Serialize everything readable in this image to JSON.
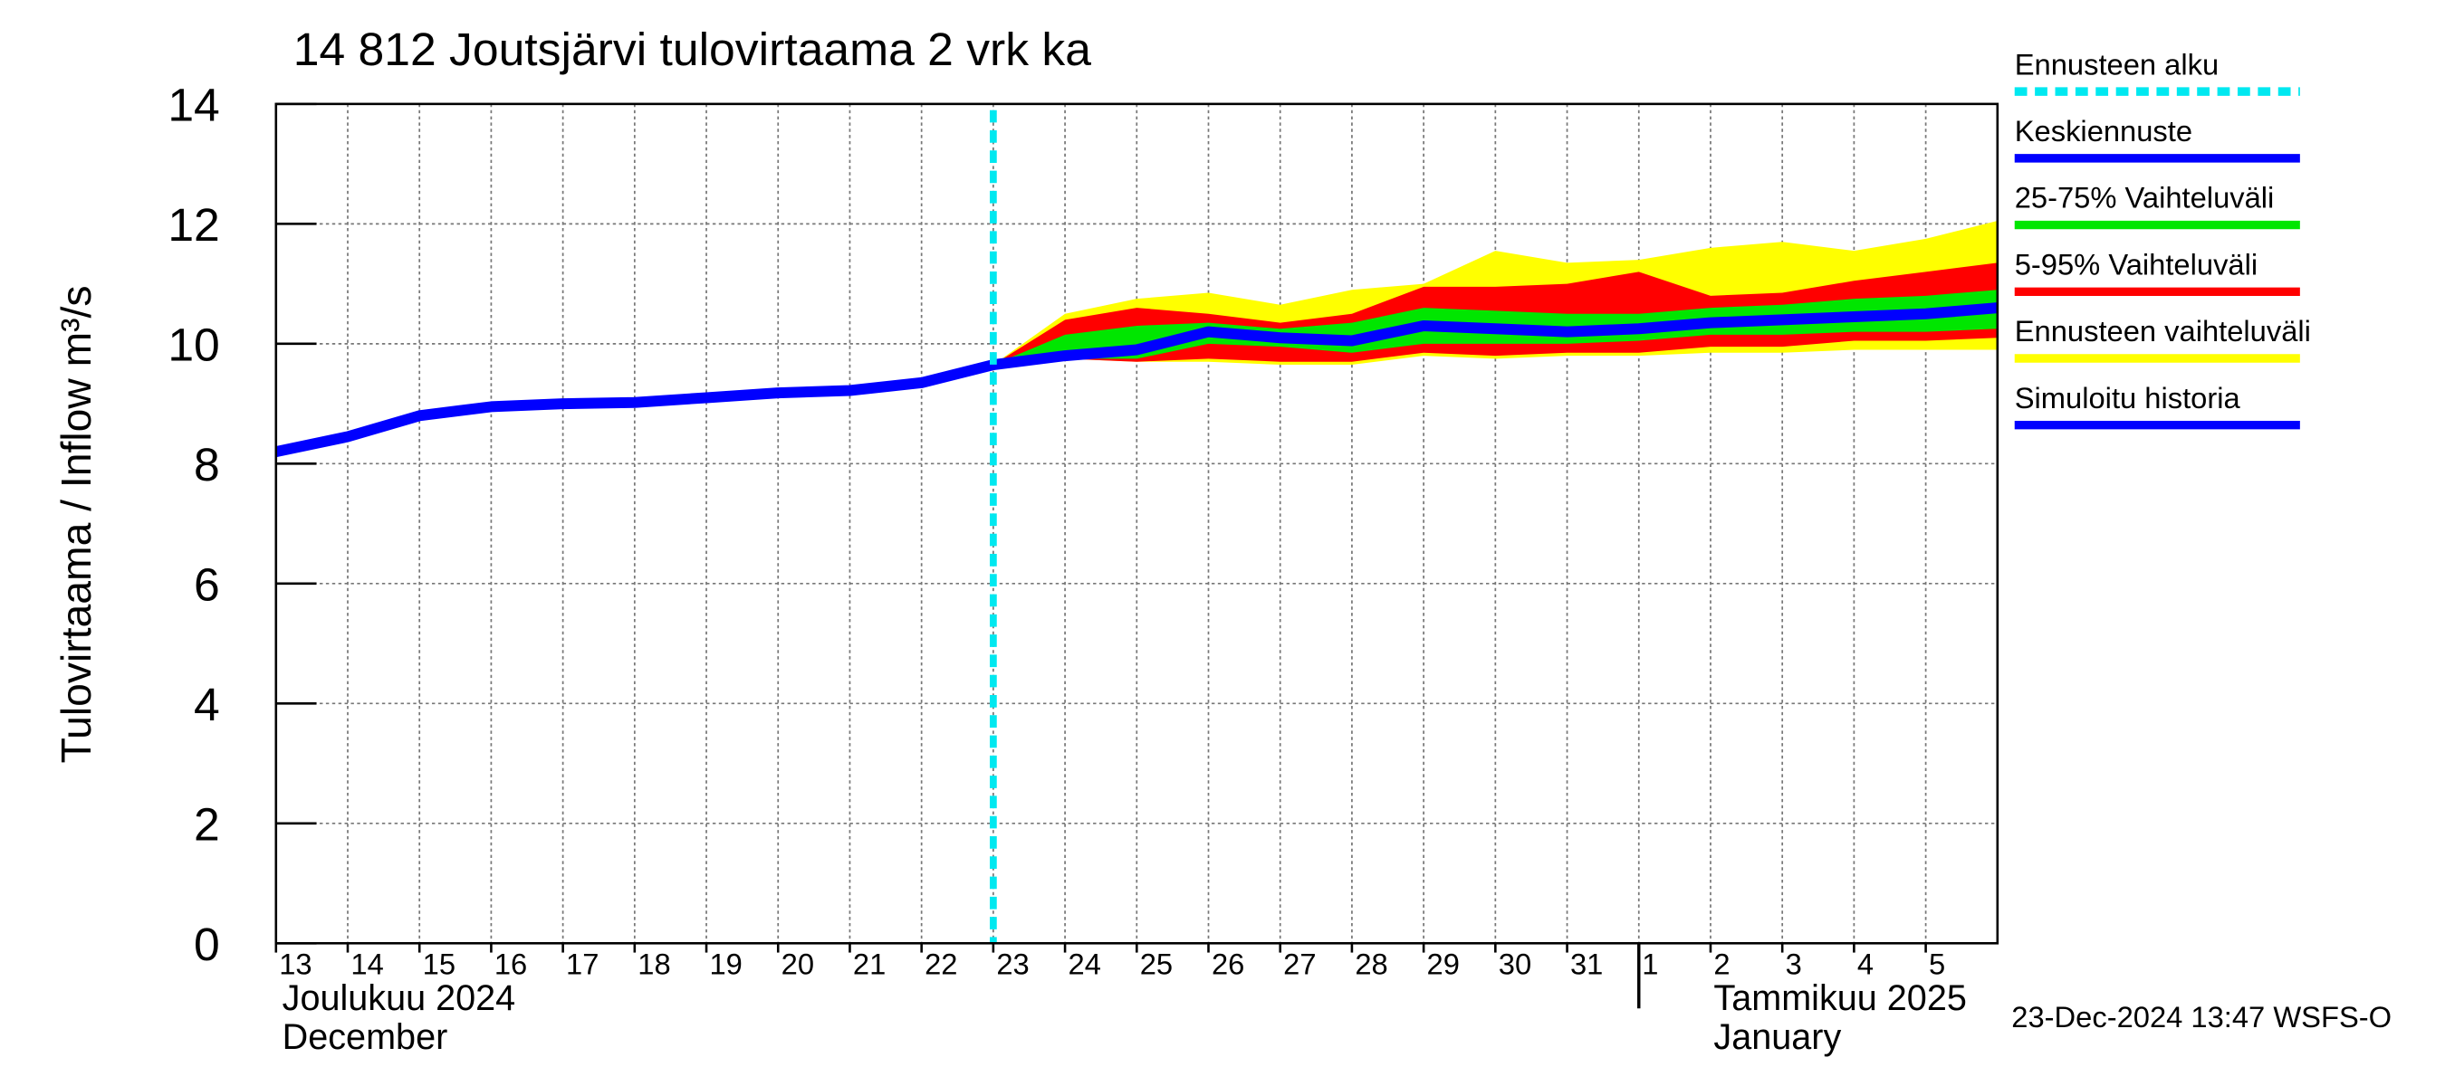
{
  "chart_data": {
    "type": "forecast",
    "title": "14 812 Joutsjärvi tulovirtaama 2 vrk ka",
    "y_label": "Tulovirtaama / Inflow    m³/s",
    "x": [
      "2024-12-13",
      "2024-12-14",
      "2024-12-15",
      "2024-12-16",
      "2024-12-17",
      "2024-12-18",
      "2024-12-19",
      "2024-12-20",
      "2024-12-21",
      "2024-12-22",
      "2024-12-23",
      "2024-12-24",
      "2024-12-25",
      "2024-12-26",
      "2024-12-27",
      "2024-12-28",
      "2024-12-29",
      "2024-12-30",
      "2024-12-31",
      "2025-01-01",
      "2025-01-02",
      "2025-01-03",
      "2025-01-04",
      "2025-01-05",
      "2025-01-06"
    ],
    "xlim": [
      "2024-12-13",
      "2025-01-06"
    ],
    "xticks": [
      {
        "value": "2024-12-13",
        "label": "13"
      },
      {
        "value": "2024-12-14",
        "label": "14"
      },
      {
        "value": "2024-12-15",
        "label": "15"
      },
      {
        "value": "2024-12-16",
        "label": "16"
      },
      {
        "value": "2024-12-17",
        "label": "17"
      },
      {
        "value": "2024-12-18",
        "label": "18"
      },
      {
        "value": "2024-12-19",
        "label": "19"
      },
      {
        "value": "2024-12-20",
        "label": "20"
      },
      {
        "value": "2024-12-21",
        "label": "21"
      },
      {
        "value": "2024-12-22",
        "label": "22"
      },
      {
        "value": "2024-12-23",
        "label": "23"
      },
      {
        "value": "2024-12-24",
        "label": "24"
      },
      {
        "value": "2024-12-25",
        "label": "25"
      },
      {
        "value": "2024-12-26",
        "label": "26"
      },
      {
        "value": "2024-12-27",
        "label": "27"
      },
      {
        "value": "2024-12-28",
        "label": "28"
      },
      {
        "value": "2024-12-29",
        "label": "29"
      },
      {
        "value": "2024-12-30",
        "label": "30"
      },
      {
        "value": "2024-12-31",
        "label": "31"
      },
      {
        "value": "2025-01-01",
        "label": "1"
      },
      {
        "value": "2025-01-02",
        "label": "2"
      },
      {
        "value": "2025-01-03",
        "label": "3"
      },
      {
        "value": "2025-01-04",
        "label": "4"
      },
      {
        "value": "2025-01-05",
        "label": "5"
      }
    ],
    "month_labels": [
      {
        "x": "2024-12-13",
        "fi": "Joulukuu  2024",
        "en": "December"
      },
      {
        "x": "2025-01-01",
        "fi": "Tammikuu  2025",
        "en": "January"
      }
    ],
    "ylim": [
      0,
      14
    ],
    "yticks": [
      0,
      2,
      4,
      6,
      8,
      10,
      12,
      14
    ],
    "grid": true,
    "forecast_start": {
      "name": "Ennusteen alku",
      "x": "2024-12-23",
      "color": "#00e8f0"
    },
    "series": [
      {
        "name": "Ennusteen vaihteluväli",
        "color": "#ffff00",
        "low": [
          null,
          null,
          null,
          null,
          null,
          null,
          null,
          null,
          null,
          null,
          9.65,
          9.75,
          9.7,
          9.7,
          9.65,
          9.65,
          9.8,
          9.75,
          9.8,
          9.8,
          9.85,
          9.85,
          9.9,
          9.9,
          9.9
        ],
        "high": [
          null,
          null,
          null,
          null,
          null,
          null,
          null,
          null,
          null,
          null,
          9.65,
          10.5,
          10.75,
          10.85,
          10.65,
          10.9,
          11.0,
          11.55,
          11.35,
          11.4,
          11.6,
          11.7,
          11.55,
          11.75,
          12.05
        ]
      },
      {
        "name": "5-95% Vaihteluväli",
        "color": "#ff0000",
        "low": [
          null,
          null,
          null,
          null,
          null,
          null,
          null,
          null,
          null,
          null,
          9.65,
          9.75,
          9.7,
          9.75,
          9.7,
          9.7,
          9.85,
          9.8,
          9.85,
          9.85,
          9.95,
          9.95,
          10.05,
          10.05,
          10.1
        ],
        "high": [
          null,
          null,
          null,
          null,
          null,
          null,
          null,
          null,
          null,
          null,
          9.65,
          10.4,
          10.6,
          10.5,
          10.35,
          10.5,
          10.95,
          10.95,
          11.0,
          11.2,
          10.8,
          10.85,
          11.05,
          11.2,
          11.35
        ]
      },
      {
        "name": "25-75% Vaihteluväli",
        "color": "#00e600",
        "low": [
          null,
          null,
          null,
          null,
          null,
          null,
          null,
          null,
          null,
          null,
          9.65,
          9.75,
          9.75,
          10.0,
          9.95,
          9.85,
          10.0,
          10.0,
          10.0,
          10.05,
          10.15,
          10.15,
          10.2,
          10.2,
          10.25
        ],
        "high": [
          null,
          null,
          null,
          null,
          null,
          null,
          null,
          null,
          null,
          null,
          9.65,
          10.15,
          10.3,
          10.35,
          10.25,
          10.35,
          10.6,
          10.55,
          10.5,
          10.5,
          10.6,
          10.65,
          10.75,
          10.8,
          10.9
        ]
      },
      {
        "name": "Keskiennuste",
        "color": "#0000ff",
        "values": [
          null,
          null,
          null,
          null,
          null,
          null,
          null,
          null,
          null,
          null,
          9.65,
          9.8,
          9.9,
          10.2,
          10.1,
          10.05,
          10.3,
          10.25,
          10.2,
          10.25,
          10.35,
          10.4,
          10.45,
          10.5,
          10.6
        ]
      },
      {
        "name": "Simuloitu historia",
        "color": "#0000ff",
        "values": [
          8.2,
          8.45,
          8.8,
          8.95,
          9.0,
          9.02,
          9.1,
          9.18,
          9.22,
          9.35,
          9.65,
          null,
          null,
          null,
          null,
          null,
          null,
          null,
          null,
          null,
          null,
          null,
          null,
          null,
          null
        ]
      }
    ],
    "footer": "23-Dec-2024 13:47 WSFS-O"
  }
}
